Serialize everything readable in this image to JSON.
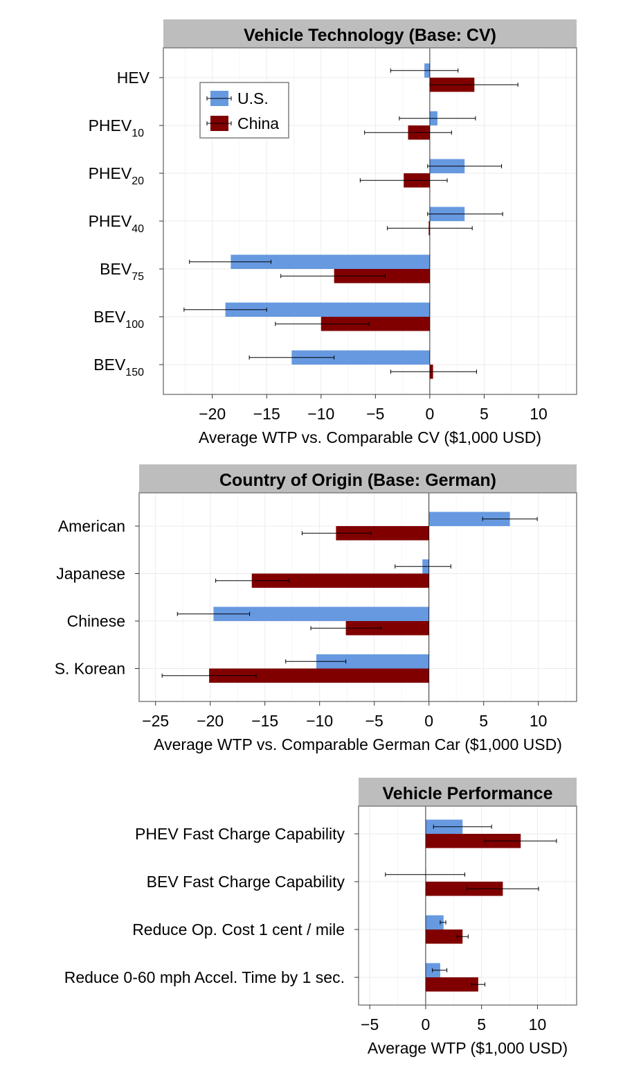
{
  "colors": {
    "us": "#6699e0",
    "china": "#800000",
    "strip": "#bdbdbd",
    "grid": "#ebebeb",
    "frame": "#7f7f7f"
  },
  "legend": {
    "us": "U.S.",
    "china": "China"
  },
  "chart_data": [
    {
      "type": "bar",
      "title": "Vehicle Technology (Base: CV)",
      "xlabel": "Average WTP vs. Comparable CV ($1,000 USD)",
      "ylabel": "",
      "xlim": [
        -24.5,
        13.5
      ],
      "xticks": [
        -20,
        -15,
        -10,
        -5,
        0,
        5,
        10
      ],
      "categories": [
        {
          "main": "HEV",
          "sub": ""
        },
        {
          "main": "PHEV",
          "sub": "10"
        },
        {
          "main": "PHEV",
          "sub": "20"
        },
        {
          "main": "PHEV",
          "sub": "40"
        },
        {
          "main": "BEV",
          "sub": "75"
        },
        {
          "main": "BEV",
          "sub": "100"
        },
        {
          "main": "BEV",
          "sub": "150"
        }
      ],
      "series": [
        {
          "name": "U.S.",
          "values": [
            -0.5,
            0.7,
            3.2,
            3.2,
            -18.3,
            -18.8,
            -12.7
          ],
          "lower": [
            -3.6,
            -2.8,
            -0.2,
            -0.2,
            -22.1,
            -22.6,
            -16.6
          ],
          "upper": [
            2.6,
            4.2,
            6.6,
            6.7,
            -14.6,
            -15.0,
            -8.8
          ]
        },
        {
          "name": "China",
          "values": [
            4.1,
            -2.0,
            -2.4,
            -0.1,
            -8.8,
            -10.0,
            0.3
          ],
          "lower": [
            0.0,
            -6.0,
            -6.4,
            -3.9,
            -13.7,
            -14.2,
            -3.6
          ],
          "upper": [
            8.1,
            2.0,
            1.6,
            3.9,
            -4.1,
            -5.6,
            4.3
          ]
        }
      ],
      "legend_position": "top-left",
      "grid": true
    },
    {
      "type": "bar",
      "title": "Country of Origin (Base: German)",
      "xlabel": "Average WTP vs. Comparable German Car ($1,000 USD)",
      "ylabel": "",
      "xlim": [
        -26.5,
        13.5
      ],
      "xticks": [
        -25,
        -20,
        -15,
        -10,
        -5,
        0,
        5,
        10
      ],
      "categories": [
        {
          "main": "American",
          "sub": ""
        },
        {
          "main": "Japanese",
          "sub": ""
        },
        {
          "main": "Chinese",
          "sub": ""
        },
        {
          "main": "S. Korean",
          "sub": ""
        }
      ],
      "series": [
        {
          "name": "U.S.",
          "values": [
            7.4,
            -0.6,
            -19.7,
            -10.3
          ],
          "lower": [
            4.9,
            -3.1,
            -23.0,
            -13.1
          ],
          "upper": [
            9.9,
            2.0,
            -16.4,
            -7.6
          ]
        },
        {
          "name": "China",
          "values": [
            -8.5,
            -16.2,
            -7.6,
            -20.1
          ],
          "lower": [
            -11.6,
            -19.5,
            -10.8,
            -24.4
          ],
          "upper": [
            -5.3,
            -12.8,
            -4.4,
            -15.8
          ]
        }
      ],
      "grid": true
    },
    {
      "type": "bar",
      "title": "Vehicle Performance",
      "xlabel": "Average WTP ($1,000 USD)",
      "ylabel": "",
      "xlim": [
        -6,
        13.5
      ],
      "xticks": [
        -5,
        0,
        5,
        10
      ],
      "categories": [
        {
          "main": "PHEV Fast Charge Capability",
          "sub": ""
        },
        {
          "main": "BEV Fast Charge Capability",
          "sub": ""
        },
        {
          "main": "Reduce Op. Cost 1 cent / mile",
          "sub": ""
        },
        {
          "main": "Reduce 0-60 mph Accel. Time by 1 sec.",
          "sub": ""
        }
      ],
      "series": [
        {
          "name": "U.S.",
          "values": [
            3.3,
            0.0,
            1.6,
            1.3
          ],
          "lower": [
            0.7,
            -3.6,
            1.3,
            0.6
          ],
          "upper": [
            5.9,
            3.5,
            1.8,
            1.9
          ]
        },
        {
          "name": "China",
          "values": [
            8.5,
            6.9,
            3.3,
            4.7
          ],
          "lower": [
            5.3,
            3.7,
            2.8,
            4.1
          ],
          "upper": [
            11.7,
            10.1,
            3.8,
            5.3
          ]
        }
      ],
      "grid": true
    }
  ]
}
